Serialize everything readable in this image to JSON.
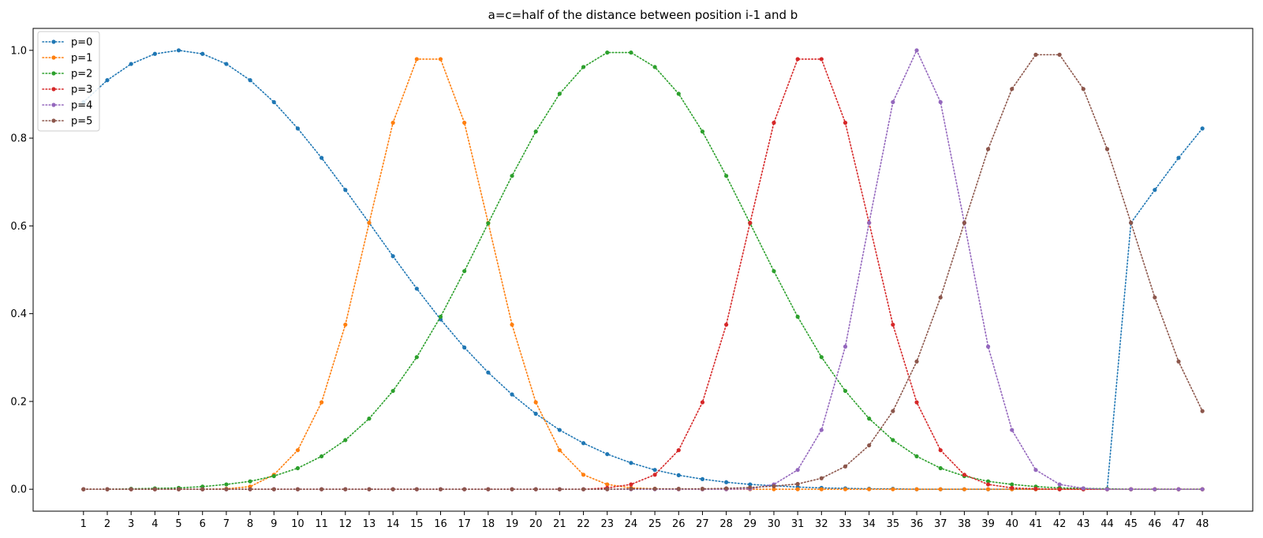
{
  "chart_data": {
    "type": "line",
    "title": "a=c=half of the distance between position i-1 and b",
    "xlabel": "",
    "ylabel": "",
    "ylim": [
      -0.05,
      1.05
    ],
    "yticks": [
      0.0,
      0.2,
      0.4,
      0.6,
      0.8,
      1.0
    ],
    "ytick_labels": [
      "0.0",
      "0.2",
      "0.4",
      "0.6",
      "0.8",
      "1.0"
    ],
    "legend_position": "top-left",
    "grid": false,
    "line_style": "dotted",
    "marker": "circle",
    "x": [
      1,
      2,
      3,
      4,
      5,
      6,
      7,
      8,
      9,
      10,
      11,
      12,
      13,
      14,
      15,
      16,
      17,
      18,
      19,
      20,
      21,
      22,
      23,
      24,
      25,
      26,
      27,
      28,
      29,
      30,
      31,
      32,
      33,
      34,
      35,
      36,
      37,
      38,
      39,
      40,
      41,
      42,
      43,
      44,
      45,
      46,
      47,
      48
    ],
    "xtick_labels": [
      "1",
      "2",
      "3",
      "4",
      "5",
      "6",
      "7",
      "8",
      "9",
      "10",
      "11",
      "12",
      "13",
      "14",
      "15",
      "16",
      "17",
      "18",
      "19",
      "20",
      "21",
      "22",
      "23",
      "24",
      "25",
      "26",
      "27",
      "28",
      "29",
      "30",
      "31",
      "32",
      "33",
      "34",
      "35",
      "36",
      "37",
      "38",
      "39",
      "40",
      "41",
      "42",
      "43",
      "44",
      "45",
      "46",
      "47",
      "48"
    ],
    "series": [
      {
        "name": "p=0",
        "color": "#1f77b4",
        "values": [
          0.882,
          0.932,
          0.969,
          0.992,
          1.0,
          0.992,
          0.969,
          0.932,
          0.882,
          0.822,
          0.755,
          0.682,
          0.607,
          0.531,
          0.457,
          0.387,
          0.323,
          0.266,
          0.216,
          0.172,
          0.135,
          0.105,
          0.08,
          0.06,
          0.044,
          0.032,
          0.023,
          0.016,
          0.011,
          0.008,
          0.005,
          0.003,
          0.002,
          0.001,
          0.001,
          0.0,
          0.0,
          0.0,
          0.0,
          0.0,
          0.0,
          0.0,
          0.0,
          0.0,
          0.607,
          0.682,
          0.755,
          0.822
        ]
      },
      {
        "name": "p=1",
        "color": "#ff7f0e",
        "values": [
          0.0,
          0.0,
          0.0,
          0.0,
          0.0,
          0.0,
          0.001,
          0.006,
          0.033,
          0.089,
          0.198,
          0.375,
          0.607,
          0.835,
          0.98,
          0.98,
          0.835,
          0.607,
          0.375,
          0.198,
          0.089,
          0.033,
          0.011,
          0.003,
          0.001,
          0.0,
          0.0,
          0.0,
          0.0,
          0.0,
          0.0,
          0.0,
          0.0,
          0.0,
          0.0,
          0.0,
          0.0,
          0.0,
          0.0,
          0.0,
          0.0,
          0.0,
          0.0,
          0.0,
          0.0,
          0.0,
          0.0,
          0.0
        ]
      },
      {
        "name": "p=2",
        "color": "#2ca02c",
        "values": [
          0.0,
          0.0,
          0.001,
          0.002,
          0.003,
          0.006,
          0.011,
          0.018,
          0.03,
          0.048,
          0.075,
          0.112,
          0.161,
          0.224,
          0.301,
          0.393,
          0.497,
          0.606,
          0.714,
          0.815,
          0.901,
          0.962,
          0.995,
          0.995,
          0.962,
          0.901,
          0.815,
          0.714,
          0.606,
          0.497,
          0.393,
          0.301,
          0.224,
          0.161,
          0.112,
          0.075,
          0.048,
          0.03,
          0.018,
          0.011,
          0.006,
          0.003,
          0.002,
          0.001,
          0.0,
          0.0,
          0.0,
          0.0
        ]
      },
      {
        "name": "p=3",
        "color": "#d62728",
        "values": [
          0.0,
          0.0,
          0.0,
          0.0,
          0.0,
          0.0,
          0.0,
          0.0,
          0.0,
          0.0,
          0.0,
          0.0,
          0.0,
          0.0,
          0.0,
          0.0,
          0.0,
          0.0,
          0.0,
          0.0,
          0.0,
          0.0,
          0.003,
          0.011,
          0.033,
          0.089,
          0.198,
          0.375,
          0.607,
          0.835,
          0.98,
          0.98,
          0.835,
          0.607,
          0.375,
          0.198,
          0.089,
          0.033,
          0.011,
          0.003,
          0.001,
          0.0,
          0.0,
          0.0,
          0.0,
          0.0,
          0.0,
          0.0
        ]
      },
      {
        "name": "p=4",
        "color": "#9467bd",
        "values": [
          0.0,
          0.0,
          0.0,
          0.0,
          0.0,
          0.0,
          0.0,
          0.0,
          0.0,
          0.0,
          0.0,
          0.0,
          0.0,
          0.0,
          0.0,
          0.0,
          0.0,
          0.0,
          0.0,
          0.0,
          0.0,
          0.0,
          0.0,
          0.0,
          0.0,
          0.0,
          0.0,
          0.0,
          0.001,
          0.011,
          0.044,
          0.135,
          0.325,
          0.607,
          0.882,
          1.0,
          0.882,
          0.607,
          0.325,
          0.135,
          0.044,
          0.011,
          0.002,
          0.0,
          0.0,
          0.0,
          0.0,
          0.0
        ]
      },
      {
        "name": "p=5",
        "color": "#8c564b",
        "values": [
          0.0,
          0.0,
          0.0,
          0.0,
          0.0,
          0.0,
          0.0,
          0.0,
          0.0,
          0.0,
          0.0,
          0.0,
          0.0,
          0.0,
          0.0,
          0.0,
          0.0,
          0.0,
          0.0,
          0.0,
          0.0,
          0.0,
          0.0,
          0.001,
          0.001,
          0.001,
          0.001,
          0.002,
          0.004,
          0.007,
          0.012,
          0.025,
          0.052,
          0.1,
          0.178,
          0.291,
          0.437,
          0.607,
          0.775,
          0.912,
          0.99,
          0.99,
          0.912,
          0.775,
          0.607,
          0.437,
          0.291,
          0.178
        ]
      }
    ]
  }
}
